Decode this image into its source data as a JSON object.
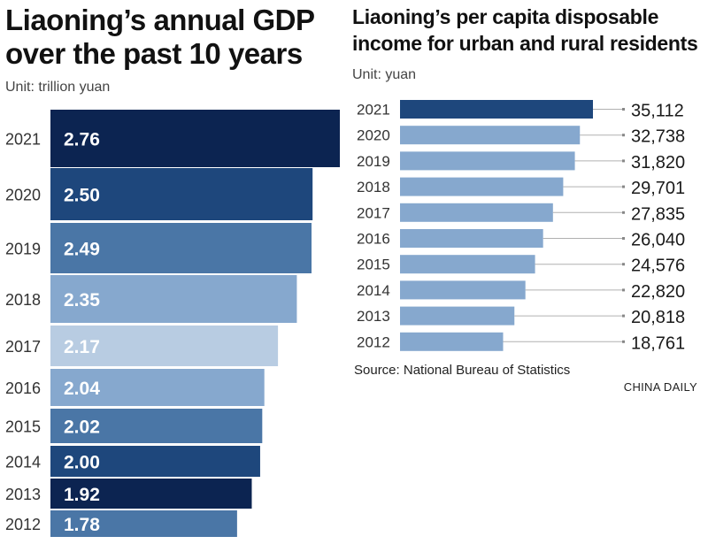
{
  "chart_data": [
    {
      "type": "bar",
      "orientation": "horizontal",
      "title": "Liaoning’s annual GDP over the past 10 years",
      "unit": "Unit: trillion yuan",
      "categories": [
        "2021",
        "2020",
        "2019",
        "2018",
        "2017",
        "2016",
        "2015",
        "2014",
        "2013",
        "2012"
      ],
      "values": [
        2.76,
        2.5,
        2.49,
        2.35,
        2.17,
        2.04,
        2.02,
        2.0,
        1.92,
        1.78
      ],
      "value_labels": [
        "2.76",
        "2.50",
        "2.49",
        "2.35",
        "2.17",
        "2.04",
        "2.02",
        "2.00",
        "1.92",
        "1.78"
      ],
      "colors": [
        "#0c2451",
        "#1e477c",
        "#4a76a6",
        "#86a8ce",
        "#b8cce2",
        "#86a8ce",
        "#4a76a6",
        "#1e477c",
        "#0c2451",
        "#4a76a6"
      ]
    },
    {
      "type": "bar",
      "orientation": "horizontal",
      "title": "Liaoning’s per capita disposable income for urban and rural residents",
      "unit": "Unit: yuan",
      "categories": [
        "2021",
        "2020",
        "2019",
        "2018",
        "2017",
        "2016",
        "2015",
        "2014",
        "2013",
        "2012"
      ],
      "values": [
        35112,
        32738,
        31820,
        29701,
        27835,
        26040,
        24576,
        22820,
        20818,
        18761
      ],
      "value_labels": [
        "35,112",
        "32,738",
        "31,820",
        "29,701",
        "27,835",
        "26,040",
        "24,576",
        "22,820",
        "20,818",
        "18,761"
      ],
      "colors": [
        "#1e477c",
        "#86a8ce",
        "#86a8ce",
        "#86a8ce",
        "#86a8ce",
        "#86a8ce",
        "#86a8ce",
        "#86a8ce",
        "#86a8ce",
        "#86a8ce"
      ]
    }
  ],
  "source": "Source: National Bureau of Statistics",
  "brand": "CHINA DAILY"
}
